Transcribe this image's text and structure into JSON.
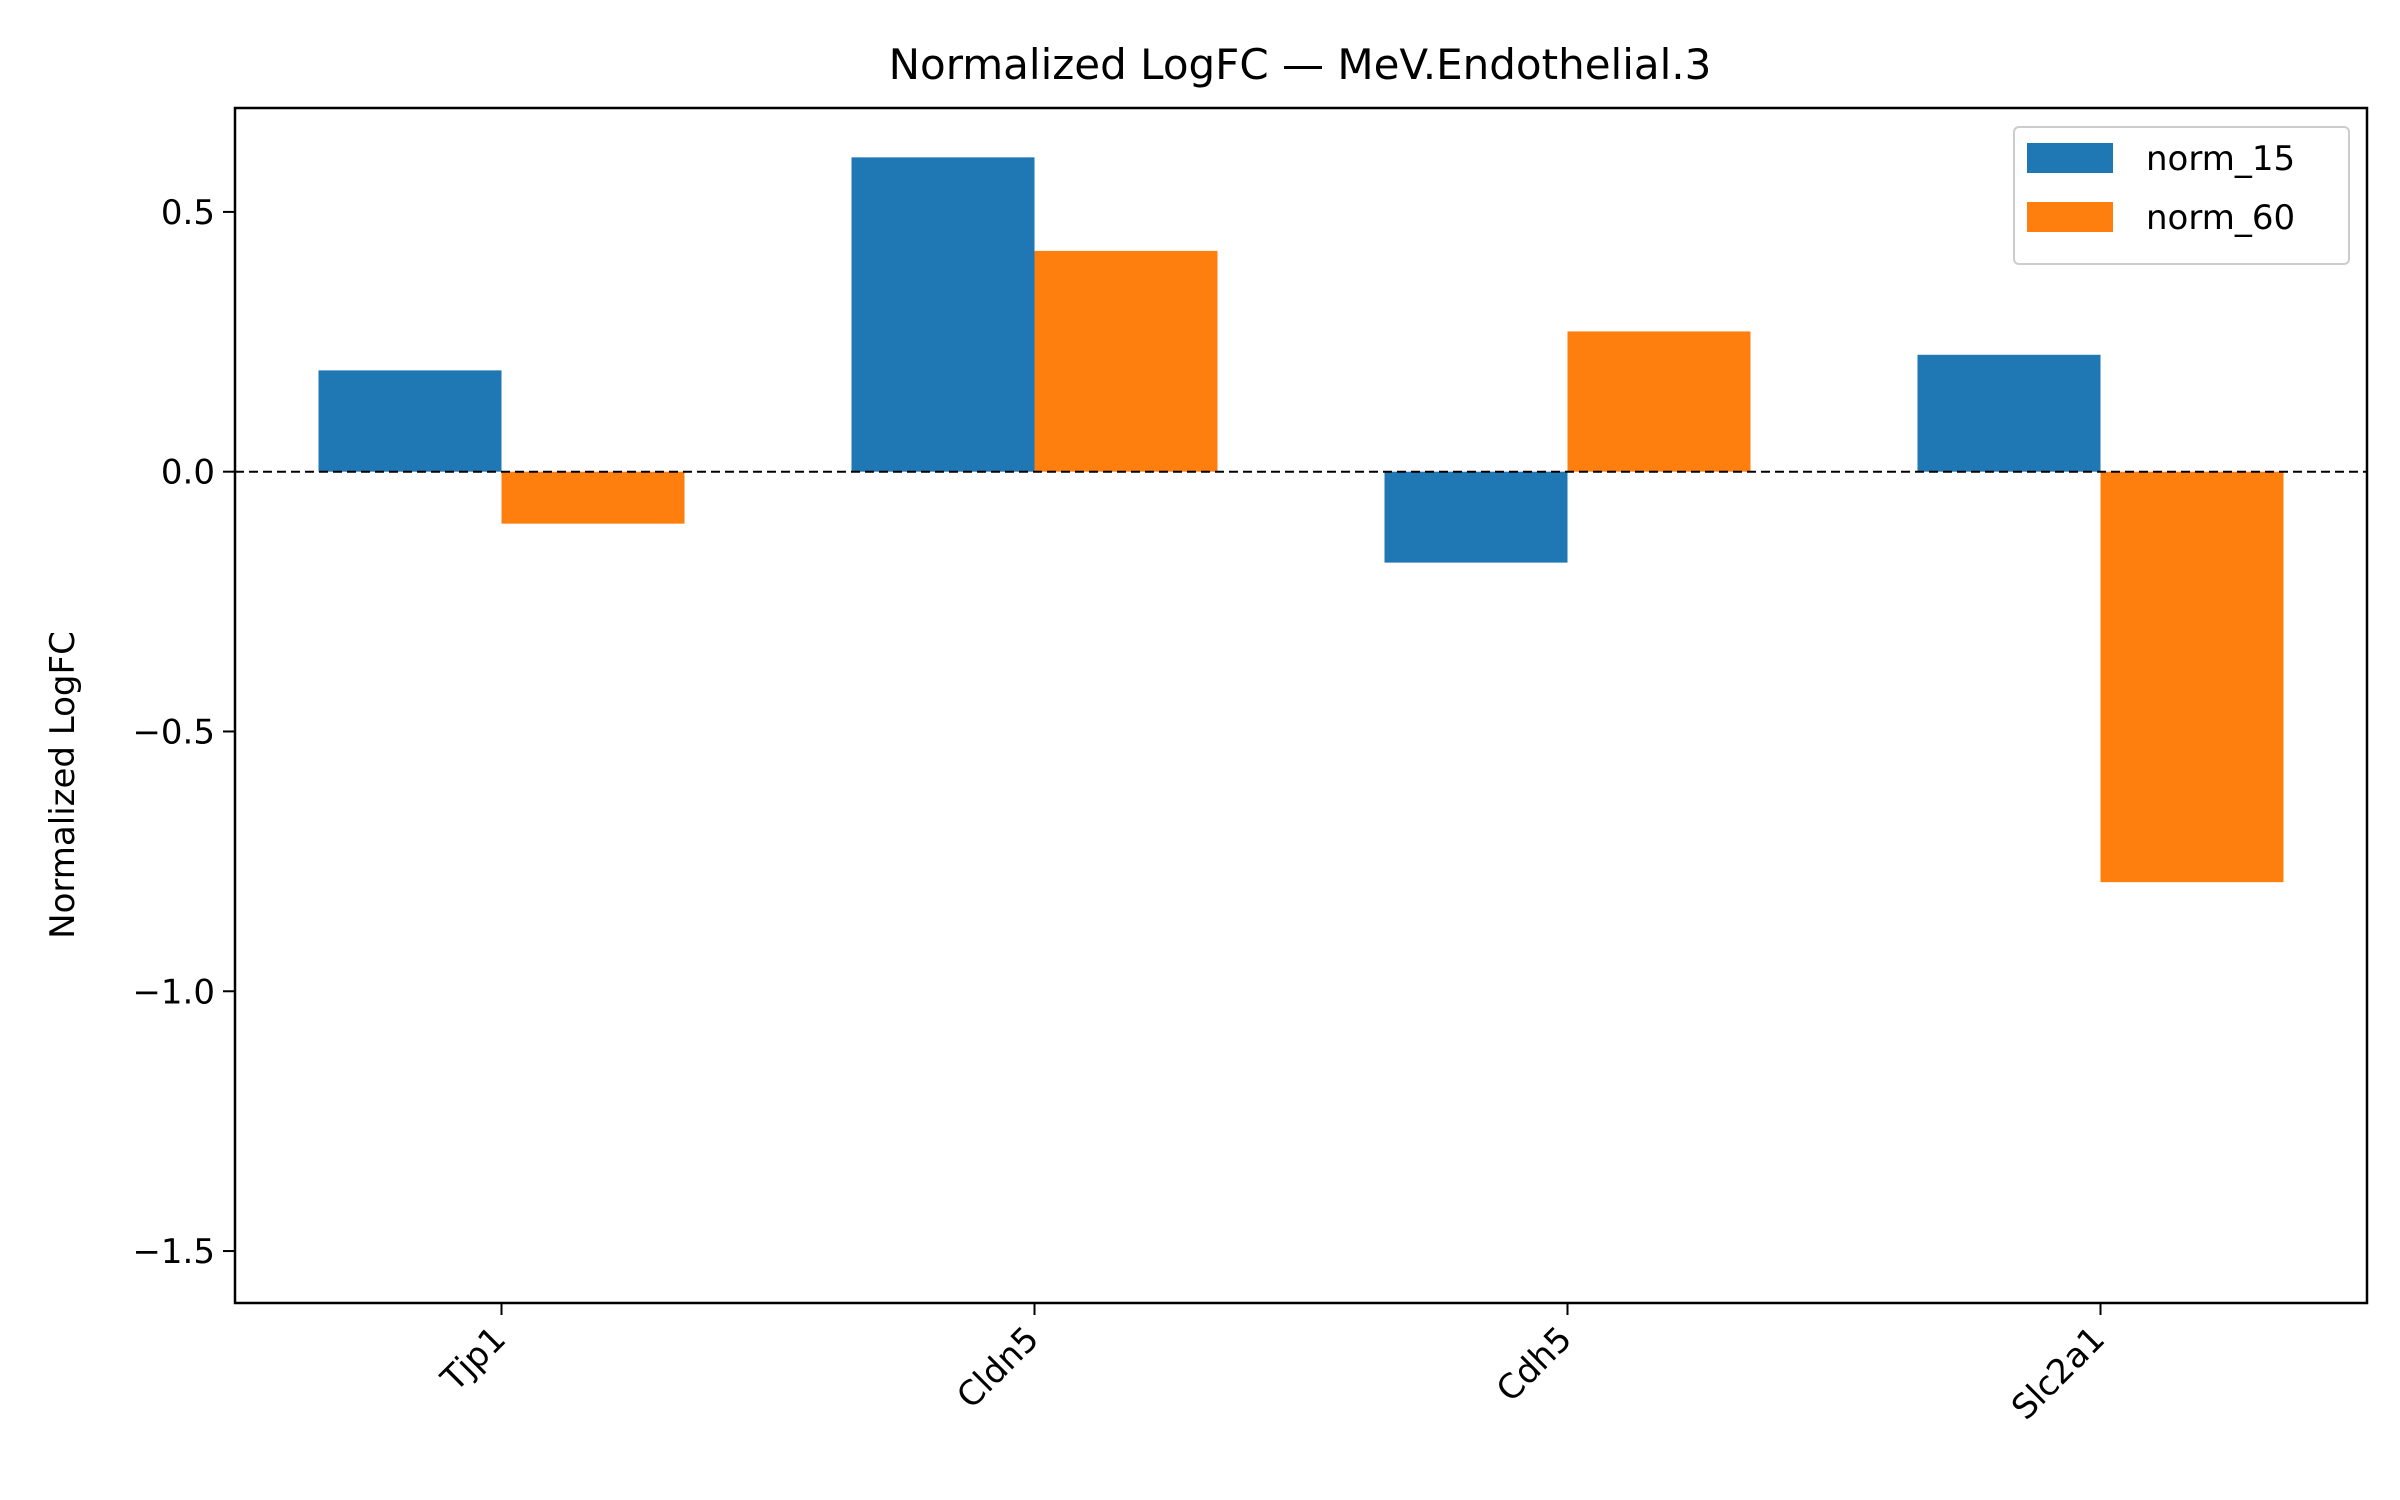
{
  "chart_data": {
    "type": "bar",
    "title": "Normalized LogFC — MeV.Endothelial.3",
    "xlabel": "",
    "ylabel": "Normalized LogFC",
    "categories": [
      "Tjp1",
      "Cldn5",
      "Cdh5",
      "Slc2a1"
    ],
    "series": [
      {
        "name": "norm_15",
        "color": "#1f77b4",
        "values": [
          0.195,
          0.605,
          -0.175,
          0.225
        ]
      },
      {
        "name": "norm_60",
        "color": "#ff7f0e",
        "values": [
          -0.1,
          0.425,
          0.27,
          -0.79
        ]
      }
    ],
    "ylim": [
      -1.6,
      0.7
    ],
    "yticks": [
      0.5,
      0.0,
      -0.5,
      -1.0,
      -1.5
    ],
    "ytick_labels": [
      "0.5",
      "0.0",
      "−0.5",
      "−1.0",
      "−1.5"
    ],
    "reference_line": {
      "y": 0.0,
      "style": "dashed",
      "color": "#000000"
    },
    "grid": false,
    "legend_position": "top-right"
  }
}
